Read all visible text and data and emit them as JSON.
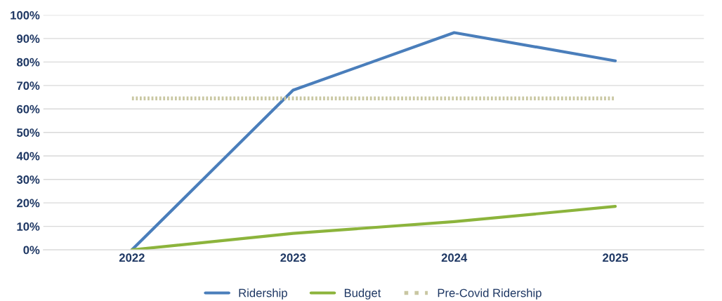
{
  "chart_data": {
    "type": "line",
    "categories": [
      "2022",
      "2023",
      "2024",
      "2025"
    ],
    "series": [
      {
        "name": "Ridership",
        "color": "#4a7ebb",
        "values": [
          0,
          68,
          92.5,
          80.5
        ]
      },
      {
        "name": "Budget",
        "color": "#8cb43c",
        "values": [
          0,
          7,
          12,
          18.5
        ]
      },
      {
        "name": "Pre-Covid Ridership",
        "color": "#c9c7a2",
        "values": [
          64.5,
          64.5,
          64.5,
          64.5
        ],
        "line_style": "dotted"
      }
    ],
    "ylim": [
      0,
      100
    ],
    "yticks": [
      {
        "value": 0,
        "label": "0%"
      },
      {
        "value": 10,
        "label": "10%"
      },
      {
        "value": 20,
        "label": "20%"
      },
      {
        "value": 30,
        "label": "30%"
      },
      {
        "value": 40,
        "label": "40%"
      },
      {
        "value": 50,
        "label": "50%"
      },
      {
        "value": 60,
        "label": "60%"
      },
      {
        "value": 70,
        "label": "70%"
      },
      {
        "value": 80,
        "label": "80%"
      },
      {
        "value": 90,
        "label": "90%"
      },
      {
        "value": 100,
        "label": "100%"
      }
    ],
    "grid": "y",
    "legend": "bottom",
    "line_style": "solid",
    "marker": "none"
  }
}
